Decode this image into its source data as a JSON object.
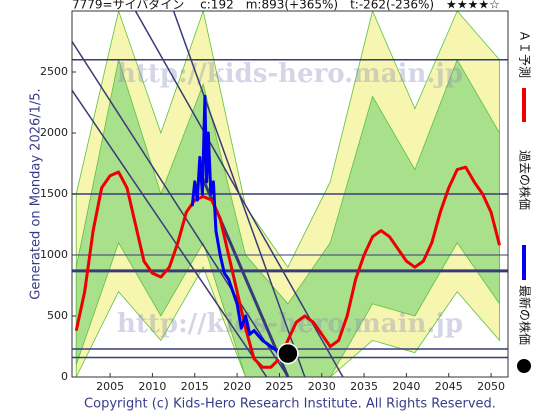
{
  "chart_data": {
    "type": "line",
    "title": "7779=サイバダイン　 c:192　m:893(+365%)　t:-262(-236%)　★★★★☆",
    "subtitle": "Generated on Monday 2026/1/5.",
    "footer": "Copyright (c) Kids-Hero Research Institute. All Rights Reserved.",
    "watermark": "http://kids-hero.main.jp",
    "xlim": [
      2000.5,
      2052
    ],
    "ylim": [
      0,
      3000
    ],
    "xticks": [
      2005,
      2010,
      2015,
      2020,
      2025,
      2030,
      2035,
      2040,
      2045,
      2050
    ],
    "yticks": [
      0,
      500,
      1000,
      1500,
      2000,
      2500
    ],
    "bands": [
      {
        "color": "#f6f6b0",
        "x": [
          2001,
          2006,
          2011,
          2016,
          2021,
          2026,
          2031,
          2036,
          2041,
          2046,
          2051
        ],
        "lower": [
          0,
          700,
          300,
          900,
          0,
          0,
          0,
          300,
          200,
          700,
          300
        ],
        "upper": [
          1500,
          3000,
          2000,
          3000,
          1400,
          900,
          1600,
          3000,
          2200,
          3000,
          2600
        ]
      },
      {
        "color": "#a8e08c",
        "x": [
          2001,
          2006,
          2011,
          2016,
          2021,
          2026,
          2031,
          2036,
          2041,
          2046,
          2051
        ],
        "lower": [
          100,
          1100,
          500,
          1100,
          0,
          0,
          0,
          600,
          500,
          1100,
          600
        ],
        "upper": [
          900,
          2600,
          1500,
          2400,
          1000,
          600,
          1100,
          2300,
          1700,
          2600,
          2000
        ]
      }
    ],
    "hlines": [
      {
        "value": 2600,
        "width": 1.5
      },
      {
        "value": 1500,
        "width": 1.5
      },
      {
        "value": 1000,
        "width": 1
      },
      {
        "value": 870,
        "width": 3
      },
      {
        "value": 230,
        "width": 1.5
      },
      {
        "value": 160,
        "width": 1.5
      }
    ],
    "diagonals": [
      {
        "x": [
          2000.5,
          2026
        ],
        "y": [
          2750,
          0
        ],
        "width": 1.5
      },
      {
        "x": [
          2000.5,
          2023.5
        ],
        "y": [
          2350,
          0
        ],
        "width": 1.5
      },
      {
        "x": [
          2008,
          2032.5
        ],
        "y": [
          3000,
          0
        ],
        "width": 1.5
      },
      {
        "x": [
          2012.5,
          2028
        ],
        "y": [
          3000,
          0
        ],
        "width": 1.5
      },
      {
        "x": [
          2015.5,
          2026
        ],
        "y": [
          1700,
          0
        ],
        "width": 3
      }
    ],
    "series": [
      {
        "name": "ＡＩ予測",
        "color": "#ee0000",
        "x": [
          2001,
          2002,
          2003,
          2004,
          2005,
          2006,
          2007,
          2008,
          2009,
          2010,
          2011,
          2012,
          2013,
          2014,
          2015,
          2016,
          2017,
          2018,
          2019,
          2020,
          2021,
          2022,
          2023,
          2024,
          2025,
          2026,
          2027,
          2028,
          2029,
          2030,
          2031,
          2032,
          2033,
          2034,
          2035,
          2036,
          2037,
          2038,
          2039,
          2040,
          2041,
          2042,
          2043,
          2044,
          2045,
          2046,
          2047,
          2048,
          2049,
          2050,
          2051
        ],
        "values": [
          380,
          700,
          1200,
          1550,
          1650,
          1680,
          1550,
          1250,
          950,
          850,
          820,
          900,
          1100,
          1350,
          1450,
          1480,
          1450,
          1300,
          1000,
          700,
          400,
          150,
          80,
          80,
          150,
          300,
          450,
          500,
          450,
          350,
          250,
          300,
          500,
          800,
          1000,
          1150,
          1200,
          1150,
          1050,
          950,
          900,
          950,
          1100,
          1350,
          1550,
          1700,
          1720,
          1600,
          1500,
          1350,
          1080
        ]
      },
      {
        "name": "過去の株価",
        "color": "#0000ee",
        "x": [
          2014.7,
          2015,
          2015.3,
          2015.6,
          2015.9,
          2016.2,
          2016.4,
          2016.6,
          2016.9,
          2017.2,
          2017.5,
          2018,
          2018.5,
          2019,
          2019.5,
          2020,
          2020.5,
          2021,
          2021.5,
          2022,
          2023,
          2024,
          2025,
          2025.8
        ],
        "values": [
          1400,
          1600,
          1450,
          1800,
          1500,
          2300,
          1600,
          2000,
          1500,
          1600,
          1200,
          1000,
          850,
          800,
          700,
          600,
          400,
          500,
          350,
          380,
          300,
          250,
          200,
          192
        ]
      },
      {
        "name": "最新の株価",
        "color": "#000000",
        "x": [
          2026
        ],
        "values": [
          192
        ]
      }
    ]
  }
}
